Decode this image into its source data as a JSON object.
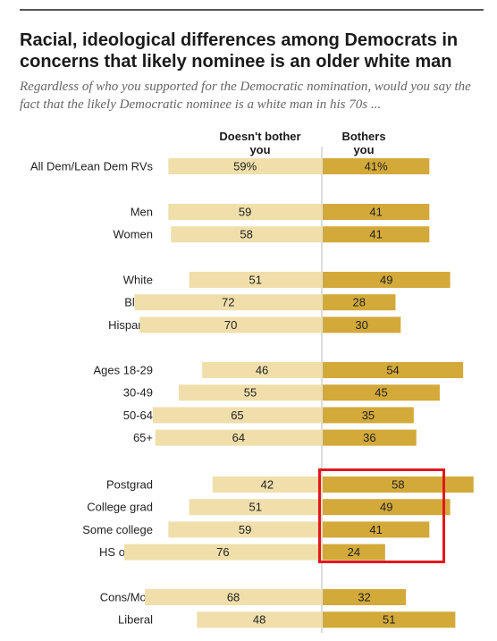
{
  "header": {
    "title": "Racial, ideological differences among Democrats in concerns that likely nominee is an older white man",
    "subtitle": "Regardless of who you supported for the Democratic nomination, would you say the fact that the likely Democratic nominee is a white man in his 70s ..."
  },
  "colors": {
    "doesnt_bother": "#f0dfab",
    "bothers": "#d3a93a",
    "divider": "#bbbbbb",
    "highlight": "#e3171d"
  },
  "chart_data": {
    "type": "bar",
    "orientation": "horizontal-diverging",
    "series": [
      {
        "name": "Doesn't bother you",
        "values": [
          59,
          59,
          58,
          51,
          72,
          70,
          46,
          55,
          65,
          64,
          42,
          51,
          59,
          76,
          68,
          48
        ]
      },
      {
        "name": "Bothers you",
        "values": [
          41,
          41,
          41,
          49,
          28,
          30,
          54,
          45,
          35,
          36,
          58,
          49,
          41,
          24,
          32,
          51
        ]
      }
    ],
    "categories": [
      "All Dem/Lean Dem RVs",
      "Men",
      "Women",
      "White",
      "Black",
      "Hispanic",
      "Ages 18-29",
      "30-49",
      "50-64",
      "65+",
      "Postgrad",
      "College grad",
      "Some college",
      "HS or less",
      "Cons/Mod",
      "Liberal"
    ],
    "groups": [
      [
        0
      ],
      [
        1,
        2
      ],
      [
        3,
        4,
        5
      ],
      [
        6,
        7,
        8,
        9
      ],
      [
        10,
        11,
        12,
        13
      ],
      [
        14,
        15
      ]
    ],
    "labels_doesnt": [
      "59%",
      "59",
      "58",
      "51",
      "72",
      "70",
      "46",
      "55",
      "65",
      "64",
      "42",
      "51",
      "59",
      "76",
      "68",
      "48"
    ],
    "labels_bothers": [
      "41%",
      "41",
      "41",
      "49",
      "28",
      "30",
      "54",
      "45",
      "35",
      "36",
      "58",
      "49",
      "41",
      "24",
      "32",
      "51"
    ],
    "column_headers": {
      "left": [
        "Doesn't bother",
        "you"
      ],
      "right": [
        "Bothers",
        "you"
      ]
    },
    "highlighted_categories": [
      "Postgrad",
      "College grad",
      "Some college",
      "HS or less"
    ],
    "xlim": [
      0,
      100
    ],
    "grid": false,
    "legend": "column headers above bars"
  }
}
